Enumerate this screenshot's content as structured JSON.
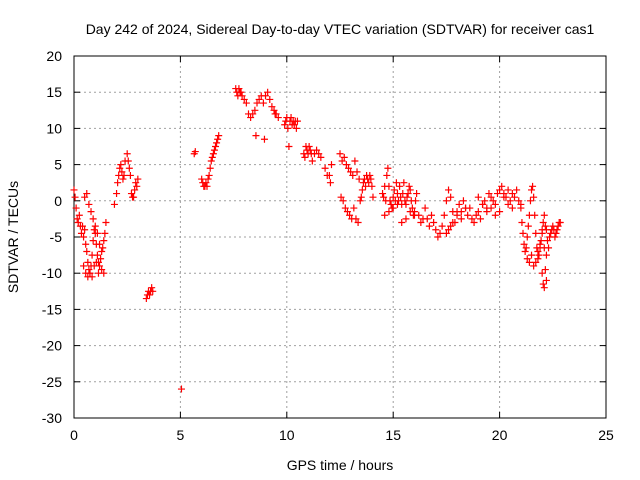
{
  "chart_data": {
    "type": "scatter",
    "title": "Day 242 of 2024, Sidereal Day-to-day VTEC variation (SDTVAR) for receiver cas1",
    "xlabel": "GPS time / hours",
    "ylabel": "SDTVAR / TECUs",
    "xlim": [
      0,
      25
    ],
    "ylim": [
      -30,
      20
    ],
    "x_ticks": [
      0,
      5,
      10,
      15,
      20,
      25
    ],
    "y_ticks": [
      -30,
      -25,
      -20,
      -15,
      -10,
      -5,
      0,
      5,
      10,
      15,
      20
    ],
    "grid": true,
    "marker": "+",
    "color": "#ff0000",
    "series": [
      {
        "name": "SDTVAR cas1",
        "x": [
          0.0,
          0.05,
          0.1,
          0.15,
          0.2,
          0.25,
          0.3,
          0.35,
          0.4,
          0.45,
          0.5,
          0.55,
          0.6,
          0.65,
          0.7,
          0.75,
          0.8,
          0.85,
          0.9,
          0.95,
          1.0,
          1.05,
          1.1,
          1.15,
          1.2,
          1.25,
          1.3,
          1.35,
          1.4,
          1.45,
          1.5,
          0.5,
          0.6,
          0.7,
          0.8,
          0.9,
          1.0,
          1.1,
          1.2,
          1.3,
          1.4,
          0.45,
          0.55,
          0.65,
          0.75,
          0.85,
          0.95,
          1.05,
          1.15,
          1.9,
          2.0,
          2.05,
          2.1,
          2.15,
          2.2,
          2.25,
          2.3,
          2.35,
          2.4,
          2.5,
          2.55,
          2.6,
          2.65,
          2.7,
          2.75,
          2.8,
          2.85,
          2.9,
          2.95,
          3.0,
          3.4,
          3.45,
          3.5,
          3.55,
          3.6,
          3.65,
          3.7,
          5.05,
          5.65,
          5.7,
          6.0,
          6.05,
          6.1,
          6.15,
          6.2,
          6.25,
          6.3,
          6.35,
          6.4,
          6.45,
          6.5,
          6.55,
          6.6,
          6.65,
          6.7,
          6.75,
          6.8,
          7.6,
          7.65,
          7.7,
          7.75,
          7.8,
          7.85,
          7.9,
          8.0,
          8.1,
          8.2,
          8.3,
          8.4,
          8.5,
          8.6,
          8.7,
          8.8,
          8.9,
          9.0,
          9.1,
          9.2,
          9.3,
          9.4,
          9.5,
          9.6,
          8.55,
          8.95,
          9.45,
          9.9,
          9.95,
          10.0,
          10.05,
          10.1,
          10.15,
          10.2,
          10.25,
          10.3,
          10.35,
          10.4,
          10.45,
          10.5,
          10.8,
          10.85,
          10.9,
          10.95,
          11.0,
          11.05,
          11.1,
          11.15,
          11.2,
          11.3,
          11.4,
          11.5,
          11.6,
          11.8,
          11.9,
          12.0,
          12.05,
          12.1,
          12.5,
          12.6,
          12.7,
          12.8,
          12.9,
          13.0,
          13.1,
          13.2,
          13.3,
          13.4,
          12.55,
          12.65,
          12.75,
          12.85,
          12.95,
          13.05,
          13.15,
          13.25,
          13.35,
          13.45,
          13.5,
          13.55,
          13.6,
          13.65,
          13.7,
          13.75,
          13.8,
          13.85,
          13.9,
          13.95,
          14.0,
          14.05,
          14.5,
          14.55,
          14.6,
          14.65,
          14.7,
          14.75,
          14.8,
          14.85,
          14.9,
          14.95,
          15.0,
          15.05,
          15.1,
          15.15,
          15.2,
          15.25,
          15.3,
          15.35,
          15.4,
          15.45,
          15.5,
          15.55,
          15.6,
          15.65,
          15.7,
          15.75,
          15.8,
          15.85,
          15.9,
          15.95,
          16.0,
          16.05,
          16.1,
          14.6,
          14.8,
          15.0,
          15.2,
          15.4,
          15.6,
          15.8,
          16.0,
          16.2,
          16.3,
          16.4,
          16.5,
          16.6,
          16.7,
          16.8,
          16.9,
          17.0,
          17.1,
          17.2,
          17.3,
          17.4,
          17.5,
          17.6,
          17.7,
          17.8,
          17.9,
          18.0,
          18.1,
          18.2,
          18.3,
          18.4,
          18.5,
          18.6,
          18.7,
          18.8,
          18.9,
          19.0,
          19.1,
          19.2,
          19.3,
          19.4,
          19.5,
          19.6,
          19.7,
          19.8,
          19.9,
          20.0,
          20.1,
          20.2,
          20.3,
          20.4,
          20.5,
          20.6,
          20.7,
          20.8,
          20.9,
          21.0,
          17.5,
          17.6,
          17.7,
          17.8,
          18.0,
          18.2,
          18.4,
          19.0,
          19.2,
          19.4,
          19.6,
          19.8,
          20.0,
          20.2,
          20.4,
          20.6,
          21.0,
          21.05,
          21.1,
          21.15,
          21.2,
          21.25,
          21.3,
          21.35,
          21.4,
          21.45,
          21.5,
          21.55,
          21.6,
          21.65,
          21.7,
          21.75,
          21.8,
          21.85,
          21.9,
          21.95,
          22.0,
          22.05,
          22.1,
          22.15,
          22.2,
          22.25,
          22.3,
          22.35,
          22.4,
          22.45,
          22.5,
          22.55,
          22.6,
          22.65,
          22.7,
          22.75,
          22.8,
          22.85,
          21.3,
          21.4,
          21.5,
          21.6,
          21.7,
          21.8,
          21.9,
          22.0,
          22.1,
          22.2,
          22.0,
          22.05,
          22.1,
          22.15,
          22.2
        ],
        "y": [
          1.5,
          0.5,
          -1.0,
          -2.5,
          -3.0,
          -2.0,
          -3.5,
          -4.5,
          -3.5,
          -5.0,
          -4.0,
          -6.0,
          -7.0,
          -8.5,
          -9.5,
          -10.0,
          -9.0,
          -7.5,
          -5.5,
          -4.0,
          -4.5,
          -6.0,
          -7.5,
          -8.5,
          -9.0,
          -8.0,
          -7.0,
          -6.5,
          -5.5,
          -4.5,
          -3.0,
          0.5,
          1.0,
          -0.5,
          -1.5,
          -2.5,
          -3.5,
          -4.5,
          -6.0,
          -9.5,
          -10.0,
          -9.0,
          -10.0,
          -10.5,
          -10.0,
          -10.5,
          -9.0,
          -8.5,
          -10.0,
          -0.5,
          1.0,
          2.5,
          3.5,
          4.5,
          5.0,
          4.0,
          3.0,
          3.5,
          5.5,
          6.5,
          5.5,
          4.5,
          3.5,
          1.0,
          0.5,
          0.5,
          1.5,
          2.5,
          2.0,
          3.0,
          -13.5,
          -13.0,
          -12.5,
          -13.0,
          -12.5,
          -12.0,
          -12.5,
          -26.0,
          6.5,
          6.8,
          3.0,
          2.5,
          2.0,
          2.0,
          2.5,
          2.0,
          3.0,
          3.5,
          4.5,
          5.5,
          6.0,
          6.5,
          7.0,
          7.5,
          8.0,
          8.5,
          9.0,
          15.5,
          15.0,
          14.5,
          15.5,
          15.0,
          15.0,
          14.5,
          14.0,
          13.5,
          12.0,
          11.5,
          12.0,
          12.5,
          13.5,
          14.0,
          14.5,
          13.5,
          14.5,
          15.0,
          14.0,
          13.0,
          12.5,
          12.0,
          11.5,
          9.0,
          8.5,
          12.0,
          10.5,
          11.0,
          11.5,
          10.0,
          7.5,
          11.0,
          11.5,
          10.5,
          11.0,
          10.5,
          11.0,
          10.0,
          11.0,
          6.5,
          6.0,
          7.5,
          7.0,
          6.5,
          7.5,
          7.0,
          6.5,
          5.5,
          6.5,
          7.0,
          6.5,
          6.0,
          4.5,
          3.5,
          3.5,
          2.5,
          5.0,
          6.5,
          5.5,
          6.0,
          5.0,
          4.5,
          4.0,
          3.5,
          5.5,
          4.0,
          3.0,
          0.5,
          0.0,
          -1.0,
          -1.5,
          -2.0,
          -2.5,
          -1.0,
          -2.5,
          -3.0,
          0.0,
          0.5,
          1.5,
          2.5,
          3.0,
          2.0,
          3.5,
          3.0,
          2.5,
          3.5,
          3.0,
          2.0,
          0.5,
          1.0,
          0.5,
          2.0,
          0.0,
          3.5,
          4.5,
          2.0,
          0.0,
          -0.5,
          -1.0,
          0.5,
          1.5,
          0.0,
          2.5,
          1.0,
          0.0,
          2.0,
          0.5,
          -0.5,
          1.0,
          2.5,
          0.0,
          -0.5,
          0.5,
          1.0,
          2.0,
          1.5,
          0.0,
          -1.0,
          -2.0,
          -1.5,
          0.0,
          1.0,
          -2.0,
          -1.5,
          -1.0,
          -0.5,
          -3.0,
          -2.5,
          -1.5,
          -2.0,
          -2.0,
          -3.0,
          -2.5,
          -1.0,
          -2.5,
          -3.5,
          -2.0,
          -3.0,
          -4.0,
          -5.0,
          -4.5,
          -3.5,
          -2.0,
          0.0,
          1.5,
          0.5,
          -1.5,
          -3.0,
          -2.0,
          -0.5,
          -1.5,
          0.0,
          -1.0,
          -2.0,
          -1.0,
          -2.5,
          -3.0,
          -2.0,
          -1.5,
          -2.5,
          -0.5,
          0.0,
          -1.0,
          1.0,
          0.5,
          0.0,
          -0.5,
          1.0,
          1.5,
          2.0,
          1.0,
          0.5,
          1.5,
          0.0,
          1.0,
          0.5,
          1.5,
          0.0,
          -0.5,
          -4.5,
          -4.0,
          -3.5,
          -3.0,
          -1.5,
          -2.5,
          -1.0,
          0.5,
          -0.5,
          -1.5,
          -1.0,
          -2.0,
          -1.5,
          0.5,
          -0.5,
          -1.0,
          -1.0,
          -3.0,
          -4.5,
          -6.0,
          -7.0,
          -6.5,
          -5.0,
          -3.5,
          -2.0,
          0.0,
          1.5,
          2.0,
          0.5,
          -2.0,
          -4.5,
          -6.5,
          -8.0,
          -7.5,
          -6.5,
          -5.5,
          -4.5,
          -3.0,
          -2.0,
          -3.5,
          -4.0,
          -5.5,
          -6.5,
          -5.0,
          -4.5,
          -4.0,
          -3.5,
          -4.0,
          -5.0,
          -4.5,
          -4.0,
          -3.5,
          -3.0,
          -3.0,
          -8.0,
          -8.5,
          -7.5,
          -9.0,
          -8.5,
          -7.0,
          -6.0,
          -4.0,
          -6.5,
          -7.5,
          -10.0,
          -11.5,
          -12.0,
          -9.5,
          -11.0
        ]
      }
    ]
  }
}
